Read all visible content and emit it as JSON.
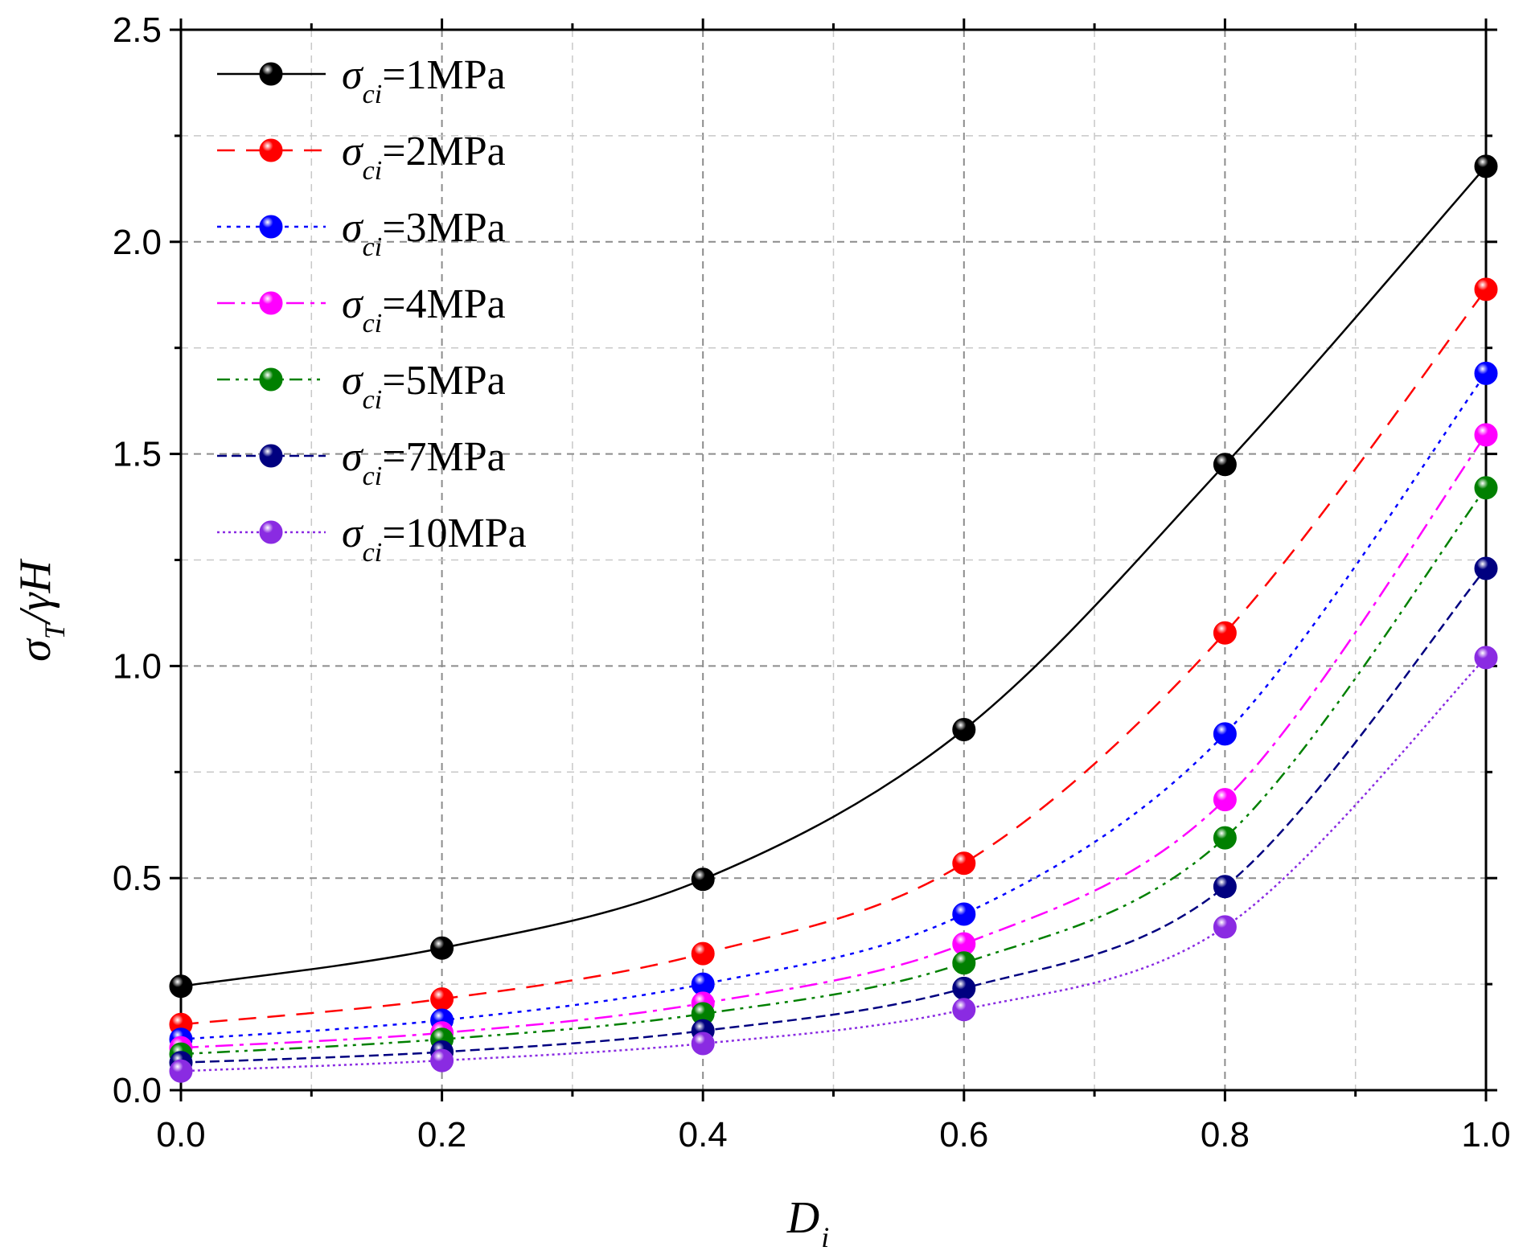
{
  "chart_data": {
    "type": "line",
    "title": "",
    "xlabel": {
      "main": "D",
      "sub": "i"
    },
    "ylabel": {
      "sigma": "σ",
      "sub": "T",
      "rest": "/γH"
    },
    "xlim": [
      0.0,
      1.0
    ],
    "ylim": [
      0.0,
      2.5
    ],
    "xticks": [
      "0.0",
      "0.2",
      "0.4",
      "0.6",
      "0.8",
      "1.0"
    ],
    "yticks": [
      "0.0",
      "0.5",
      "1.0",
      "1.5",
      "2.0",
      "2.5"
    ],
    "grid": true,
    "legend_position": "top-left",
    "x": [
      0.0,
      0.2,
      0.4,
      0.6,
      0.8,
      1.0
    ],
    "series": [
      {
        "name": "σci=1MPa",
        "label_sigma": "σ",
        "label_sub": "ci",
        "label_value": "=1MPa",
        "color": "#000000",
        "dash": "solid",
        "values": [
          0.245,
          0.335,
          0.497,
          0.85,
          1.475,
          2.178
        ]
      },
      {
        "name": "σci=2MPa",
        "label_sigma": "σ",
        "label_sub": "ci",
        "label_value": "=2MPa",
        "color": "#ff0000",
        "dash": "dash",
        "values": [
          0.155,
          0.215,
          0.322,
          0.535,
          1.078,
          1.888
        ]
      },
      {
        "name": "σci=3MPa",
        "label_sigma": "σ",
        "label_sub": "ci",
        "label_value": "=3MPa",
        "color": "#0000ff",
        "dash": "dot",
        "values": [
          0.12,
          0.165,
          0.25,
          0.415,
          0.84,
          1.69
        ]
      },
      {
        "name": "σci=4MPa",
        "label_sigma": "σ",
        "label_sub": "ci",
        "label_value": "=4MPa",
        "color": "#ff00ff",
        "dash": "dashdot",
        "values": [
          0.1,
          0.135,
          0.205,
          0.345,
          0.685,
          1.545
        ]
      },
      {
        "name": "σci=5MPa",
        "label_sigma": "σ",
        "label_sub": "ci",
        "label_value": "=5MPa",
        "color": "#008000",
        "dash": "dashdotdot",
        "values": [
          0.085,
          0.12,
          0.18,
          0.3,
          0.595,
          1.42
        ]
      },
      {
        "name": "σci=7MPa",
        "label_sigma": "σ",
        "label_sub": "ci",
        "label_value": "=7MPa",
        "color": "#000080",
        "dash": "shortdash",
        "values": [
          0.065,
          0.09,
          0.14,
          0.24,
          0.48,
          1.23
        ]
      },
      {
        "name": "σci=10MPa",
        "label_sigma": "σ",
        "label_sub": "ci",
        "label_value": "=10MPa",
        "color": "#8a2be2",
        "dash": "shortdot",
        "values": [
          0.045,
          0.07,
          0.11,
          0.19,
          0.385,
          1.02
        ]
      }
    ]
  }
}
